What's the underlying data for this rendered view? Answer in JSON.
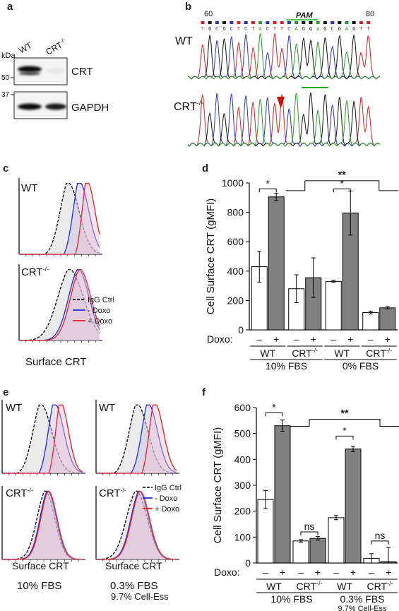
{
  "panel_labels": {
    "a": "a",
    "b": "b",
    "c": "c",
    "d": "d",
    "e": "e",
    "f": "f"
  },
  "panel_a": {
    "kda": "kDa",
    "lanes": [
      "WT",
      "CRT"
    ],
    "crt_sup": "-/-",
    "markers": [
      "50",
      "37"
    ],
    "bands": [
      "CRT",
      "GAPDH"
    ]
  },
  "panel_b": {
    "pos_start": "60",
    "pos_end": "80",
    "pam": "PAM",
    "wt_label": "WT",
    "ko_label": "CRT",
    "ko_sup": "-/-",
    "bases": [
      "T",
      "G",
      "C",
      "G",
      "C",
      "T",
      "C",
      "T",
      "A",
      "C",
      "T",
      "T",
      "C",
      "A",
      "G",
      "G",
      "A",
      "G",
      "C",
      "G",
      "A",
      "G",
      "T",
      "T"
    ]
  },
  "panel_c": {
    "wt_label": "WT",
    "ko_label": "CRT",
    "ko_sup": "-/-",
    "legend": [
      "IgG Ctrl",
      "- Doxo",
      "+ Doxo"
    ],
    "xlabel": "Surface CRT"
  },
  "panel_e": {
    "wt_label": "WT",
    "ko_label": "CRT",
    "ko_sup": "-/-",
    "legend": [
      "IgG Ctrl",
      "- Doxo",
      "+ Doxo"
    ],
    "xlabel_left": "Surface CRT",
    "xlabel_right": "Surface CRT",
    "cond_left": "10% FBS",
    "cond_right": "0.3% FBS",
    "cond_right_sub": "9.7% Cell-Ess"
  },
  "colors": {
    "igg": "#000000",
    "minus": "#1f2fd6",
    "plus": "#e8202a",
    "igg_fill": "#d0d0d0",
    "bar_dark": "#808080",
    "pam_green": "#22aa22",
    "arrow_red": "#cc1111"
  },
  "chart_data": [
    {
      "type": "bar",
      "panel": "d",
      "ylabel": "Cell Surface CRT (gMFI)",
      "ylim": [
        0,
        1000
      ],
      "yticks": [
        "0",
        "200",
        "400",
        "600",
        "800",
        "1000"
      ],
      "xlabel_row": "Doxo:",
      "doxo_signs": [
        "–",
        "+",
        "–",
        "+",
        "–",
        "+",
        "–",
        "+"
      ],
      "groups": [
        "WT",
        "CRT",
        "WT",
        "CRT"
      ],
      "group_sup": [
        "",
        "-/-",
        "",
        "-/-"
      ],
      "conditions": [
        "10% FBS",
        "0% FBS"
      ],
      "series": [
        {
          "name": "-",
          "values": [
            430,
            280,
            330,
            118
          ],
          "errors": [
            105,
            95,
            6,
            10
          ]
        },
        {
          "name": "+",
          "values": [
            905,
            355,
            795,
            150
          ],
          "errors": [
            25,
            135,
            150,
            8
          ]
        }
      ],
      "annotations": [
        "*",
        "*",
        "**"
      ]
    },
    {
      "type": "bar",
      "panel": "f",
      "ylabel": "Cell Surface CRT (gMFI)",
      "ylim": [
        0,
        600
      ],
      "yticks": [
        "0",
        "100",
        "200",
        "300",
        "400",
        "500",
        "600"
      ],
      "xlabel_row": "Doxo:",
      "doxo_signs": [
        "–",
        "+",
        "–",
        "+",
        "–",
        "+",
        "–",
        "+"
      ],
      "groups": [
        "WT",
        "CRT",
        "WT",
        "CRT"
      ],
      "group_sup": [
        "",
        "-/-",
        "",
        "-/-"
      ],
      "conditions": [
        "10% FBS",
        "0.3% FBS"
      ],
      "condition_sub": "9.7% Cell-Ess",
      "series": [
        {
          "name": "-",
          "values": [
            245,
            85,
            175,
            18
          ],
          "errors": [
            35,
            5,
            8,
            18
          ]
        },
        {
          "name": "+",
          "values": [
            530,
            95,
            440,
            5
          ],
          "errors": [
            22,
            7,
            10,
            55
          ]
        }
      ],
      "annotations": [
        "*",
        "ns",
        "*",
        "ns",
        "**"
      ]
    }
  ]
}
